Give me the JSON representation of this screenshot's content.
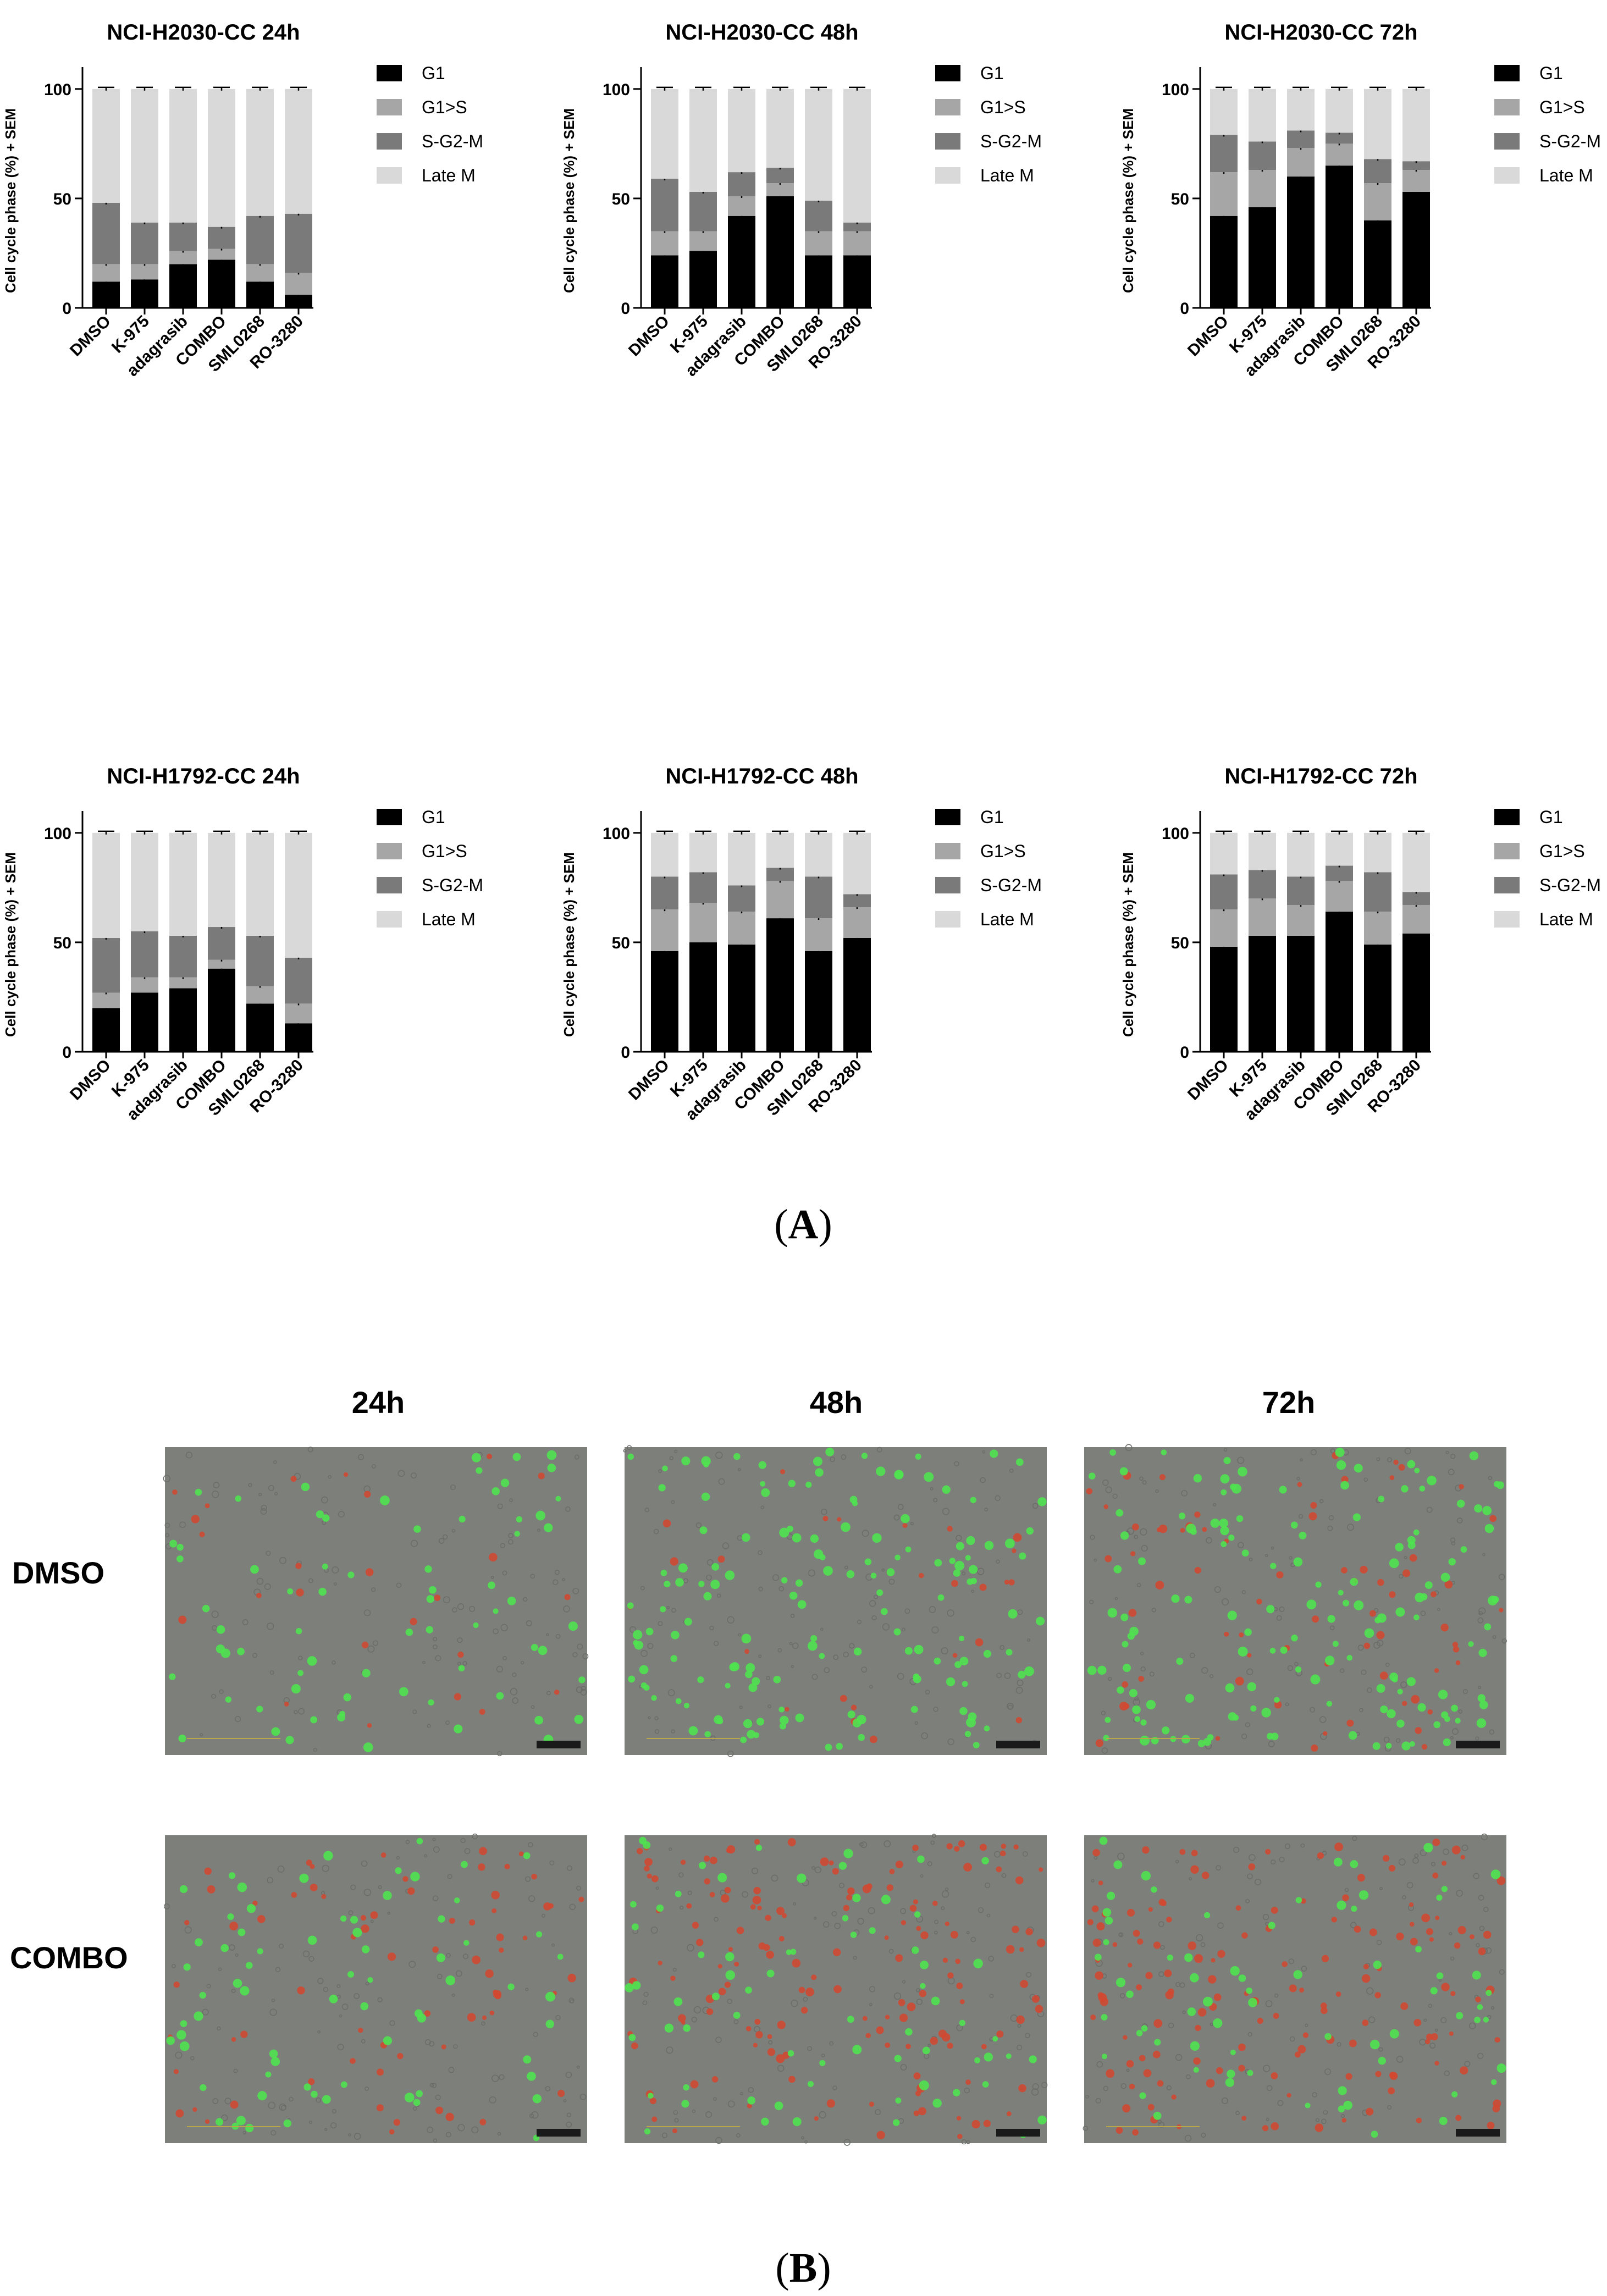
{
  "colors": {
    "G1": "#000000",
    "G1>S": "#a6a6a6",
    "S-G2-M": "#7a7a7a",
    "Late M": "#d9d9d9",
    "micro_bg": "#7d7f7a",
    "live_cell": "#4fe34f",
    "dead_cell": "#d4472f"
  },
  "panel_labels": {
    "a": "A",
    "b": "B"
  },
  "panel_b": {
    "time_headers": [
      "24h",
      "48h",
      "72h"
    ],
    "row_headers": [
      "DMSO",
      "COMBO"
    ],
    "micrographs": [
      {
        "row": "DMSO",
        "time": "24h",
        "live_cells": "moderate",
        "dead_cells": "few"
      },
      {
        "row": "DMSO",
        "time": "48h",
        "live_cells": "many",
        "dead_cells": "few"
      },
      {
        "row": "DMSO",
        "time": "72h",
        "live_cells": "many",
        "dead_cells": "moderate"
      },
      {
        "row": "COMBO",
        "time": "24h",
        "live_cells": "moderate",
        "dead_cells": "moderate"
      },
      {
        "row": "COMBO",
        "time": "48h",
        "live_cells": "moderate",
        "dead_cells": "many"
      },
      {
        "row": "COMBO",
        "time": "72h",
        "live_cells": "moderate",
        "dead_cells": "many"
      }
    ]
  },
  "chart_data": [
    {
      "type": "bar",
      "stacked": true,
      "title": "NCI-H2030-CC 24h",
      "ylabel": "Cell cycle phase (%) + SEM",
      "ylim": [
        0,
        110
      ],
      "yticks": [
        0,
        50,
        100
      ],
      "categories": [
        "DMSO",
        "K-975",
        "adagrasib",
        "COMBO",
        "SML0268",
        "RO-3280"
      ],
      "legend": "right",
      "series": [
        {
          "name": "G1",
          "values": [
            12,
            13,
            20,
            22,
            12,
            6
          ]
        },
        {
          "name": "G1>S",
          "values": [
            8,
            7,
            6,
            5,
            8,
            10
          ]
        },
        {
          "name": "S-G2-M",
          "values": [
            28,
            19,
            13,
            10,
            22,
            27
          ]
        },
        {
          "name": "Late M",
          "values": [
            52,
            61,
            61,
            63,
            58,
            57
          ]
        }
      ]
    },
    {
      "type": "bar",
      "stacked": true,
      "title": "NCI-H2030-CC 48h",
      "ylabel": "Cell cycle phase (%) + SEM",
      "ylim": [
        0,
        110
      ],
      "yticks": [
        0,
        50,
        100
      ],
      "categories": [
        "DMSO",
        "K-975",
        "adagrasib",
        "COMBO",
        "SML0268",
        "RO-3280"
      ],
      "legend": "right",
      "series": [
        {
          "name": "G1",
          "values": [
            24,
            26,
            42,
            51,
            24,
            24
          ]
        },
        {
          "name": "G1>S",
          "values": [
            11,
            9,
            9,
            6,
            11,
            11
          ]
        },
        {
          "name": "S-G2-M",
          "values": [
            24,
            18,
            11,
            7,
            14,
            4
          ]
        },
        {
          "name": "Late M",
          "values": [
            41,
            47,
            38,
            36,
            51,
            61
          ]
        }
      ]
    },
    {
      "type": "bar",
      "stacked": true,
      "title": "NCI-H2030-CC 72h",
      "ylabel": "Cell cycle phase (%) + SEM",
      "ylim": [
        0,
        110
      ],
      "yticks": [
        0,
        50,
        100
      ],
      "categories": [
        "DMSO",
        "K-975",
        "adagrasib",
        "COMBO",
        "SML0268",
        "RO-3280"
      ],
      "legend": "right",
      "series": [
        {
          "name": "G1",
          "values": [
            42,
            46,
            60,
            65,
            40,
            53
          ]
        },
        {
          "name": "G1>S",
          "values": [
            20,
            17,
            13,
            10,
            17,
            10
          ]
        },
        {
          "name": "S-G2-M",
          "values": [
            17,
            13,
            8,
            5,
            11,
            4
          ]
        },
        {
          "name": "Late M",
          "values": [
            21,
            24,
            19,
            20,
            32,
            33
          ]
        }
      ]
    },
    {
      "type": "bar",
      "stacked": true,
      "title": "NCI-H1792-CC 24h",
      "ylabel": "Cell cycle phase (%) + SEM",
      "ylim": [
        0,
        110
      ],
      "yticks": [
        0,
        50,
        100
      ],
      "categories": [
        "DMSO",
        "K-975",
        "adagrasib",
        "COMBO",
        "SML0268",
        "RO-3280"
      ],
      "legend": "right",
      "series": [
        {
          "name": "G1",
          "values": [
            20,
            27,
            29,
            38,
            22,
            13
          ]
        },
        {
          "name": "G1>S",
          "values": [
            7,
            7,
            5,
            4,
            8,
            9
          ]
        },
        {
          "name": "S-G2-M",
          "values": [
            25,
            21,
            19,
            15,
            23,
            21
          ]
        },
        {
          "name": "Late M",
          "values": [
            48,
            45,
            47,
            43,
            47,
            57
          ]
        }
      ]
    },
    {
      "type": "bar",
      "stacked": true,
      "title": "NCI-H1792-CC 48h",
      "ylabel": "Cell cycle phase (%) + SEM",
      "ylim": [
        0,
        110
      ],
      "yticks": [
        0,
        50,
        100
      ],
      "categories": [
        "DMSO",
        "K-975",
        "adagrasib",
        "COMBO",
        "SML0268",
        "RO-3280"
      ],
      "legend": "right",
      "series": [
        {
          "name": "G1",
          "values": [
            46,
            50,
            49,
            61,
            46,
            52
          ]
        },
        {
          "name": "G1>S",
          "values": [
            19,
            18,
            15,
            17,
            15,
            14
          ]
        },
        {
          "name": "S-G2-M",
          "values": [
            15,
            14,
            12,
            6,
            19,
            6
          ]
        },
        {
          "name": "Late M",
          "values": [
            20,
            18,
            24,
            16,
            20,
            28
          ]
        }
      ]
    },
    {
      "type": "bar",
      "stacked": true,
      "title": "NCI-H1792-CC 72h",
      "ylabel": "Cell cycle phase (%) + SEM",
      "ylim": [
        0,
        110
      ],
      "yticks": [
        0,
        50,
        100
      ],
      "categories": [
        "DMSO",
        "K-975",
        "adagrasib",
        "COMBO",
        "SML0268",
        "RO-3280"
      ],
      "legend": "right",
      "series": [
        {
          "name": "G1",
          "values": [
            48,
            53,
            53,
            64,
            49,
            54
          ]
        },
        {
          "name": "G1>S",
          "values": [
            17,
            17,
            14,
            14,
            15,
            13
          ]
        },
        {
          "name": "S-G2-M",
          "values": [
            16,
            13,
            13,
            7,
            18,
            6
          ]
        },
        {
          "name": "Late M",
          "values": [
            19,
            17,
            20,
            15,
            18,
            27
          ]
        }
      ]
    }
  ]
}
